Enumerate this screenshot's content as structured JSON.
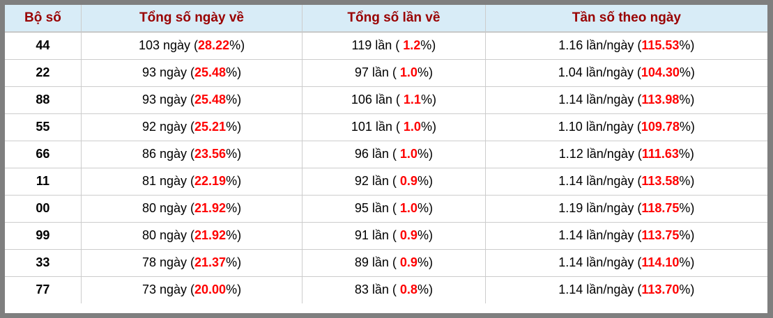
{
  "table": {
    "headers": [
      "Bộ số",
      "Tổng số ngày về",
      "Tổng số lần về",
      "Tần số theo ngày"
    ],
    "rows": [
      {
        "pair": "44",
        "days_pre": "103 ngày (",
        "days_hl": "28.22",
        "days_post": "%)",
        "times_pre": "119 lần ( ",
        "times_hl": "1.2",
        "times_post": "%)",
        "freq_pre": "1.16 lần/ngày (",
        "freq_hl": "115.53",
        "freq_post": "%)"
      },
      {
        "pair": "22",
        "days_pre": "93 ngày (",
        "days_hl": "25.48",
        "days_post": "%)",
        "times_pre": "97 lần ( ",
        "times_hl": "1.0",
        "times_post": "%)",
        "freq_pre": "1.04 lần/ngày (",
        "freq_hl": "104.30",
        "freq_post": "%)"
      },
      {
        "pair": "88",
        "days_pre": "93 ngày (",
        "days_hl": "25.48",
        "days_post": "%)",
        "times_pre": "106 lần ( ",
        "times_hl": "1.1",
        "times_post": "%)",
        "freq_pre": "1.14 lần/ngày (",
        "freq_hl": "113.98",
        "freq_post": "%)"
      },
      {
        "pair": "55",
        "days_pre": "92 ngày (",
        "days_hl": "25.21",
        "days_post": "%)",
        "times_pre": "101 lần ( ",
        "times_hl": "1.0",
        "times_post": "%)",
        "freq_pre": "1.10 lần/ngày (",
        "freq_hl": "109.78",
        "freq_post": "%)"
      },
      {
        "pair": "66",
        "days_pre": "86 ngày (",
        "days_hl": "23.56",
        "days_post": "%)",
        "times_pre": "96 lần ( ",
        "times_hl": "1.0",
        "times_post": "%)",
        "freq_pre": "1.12 lần/ngày (",
        "freq_hl": "111.63",
        "freq_post": "%)"
      },
      {
        "pair": "11",
        "days_pre": "81 ngày (",
        "days_hl": "22.19",
        "days_post": "%)",
        "times_pre": "92 lần ( ",
        "times_hl": "0.9",
        "times_post": "%)",
        "freq_pre": "1.14 lần/ngày (",
        "freq_hl": "113.58",
        "freq_post": "%)"
      },
      {
        "pair": "00",
        "days_pre": "80 ngày (",
        "days_hl": "21.92",
        "days_post": "%)",
        "times_pre": "95 lần ( ",
        "times_hl": "1.0",
        "times_post": "%)",
        "freq_pre": "1.19 lần/ngày (",
        "freq_hl": "118.75",
        "freq_post": "%)"
      },
      {
        "pair": "99",
        "days_pre": "80 ngày (",
        "days_hl": "21.92",
        "days_post": "%)",
        "times_pre": "91 lần ( ",
        "times_hl": "0.9",
        "times_post": "%)",
        "freq_pre": "1.14 lần/ngày (",
        "freq_hl": "113.75",
        "freq_post": "%)"
      },
      {
        "pair": "33",
        "days_pre": "78 ngày (",
        "days_hl": "21.37",
        "days_post": "%)",
        "times_pre": "89 lần ( ",
        "times_hl": "0.9",
        "times_post": "%)",
        "freq_pre": "1.14 lần/ngày (",
        "freq_hl": "114.10",
        "freq_post": "%)"
      },
      {
        "pair": "77",
        "days_pre": "73 ngày (",
        "days_hl": "20.00",
        "days_post": "%)",
        "times_pre": "83 lần ( ",
        "times_hl": "0.8",
        "times_post": "%)",
        "freq_pre": "1.14 lần/ngày (",
        "freq_hl": "113.70",
        "freq_post": "%)"
      }
    ]
  },
  "colors": {
    "frame": "#7f7f7f",
    "header_bg": "#d8ecf7",
    "header_text": "#990000",
    "highlight": "#ff0000",
    "border": "#cccccc"
  }
}
